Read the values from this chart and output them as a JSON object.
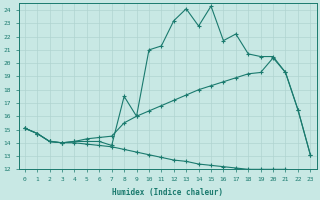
{
  "xlabel": "Humidex (Indice chaleur)",
  "xlim": [
    -0.5,
    23.5
  ],
  "ylim": [
    12,
    24.5
  ],
  "yticks": [
    12,
    13,
    14,
    15,
    16,
    17,
    18,
    19,
    20,
    21,
    22,
    23,
    24
  ],
  "xticks": [
    0,
    1,
    2,
    3,
    4,
    5,
    6,
    7,
    8,
    9,
    10,
    11,
    12,
    13,
    14,
    15,
    16,
    17,
    18,
    19,
    20,
    21,
    22,
    23
  ],
  "bg_color": "#c8e8e4",
  "line_color": "#1a7a6e",
  "grid_color": "#b0d4d0",
  "line1_x": [
    0,
    1,
    2,
    3,
    4,
    5,
    6,
    7,
    8,
    9,
    10,
    11,
    12,
    13,
    14,
    15,
    16,
    17,
    18,
    19,
    20,
    21,
    22,
    23
  ],
  "line1_y": [
    15.1,
    14.7,
    14.1,
    14.0,
    14.1,
    14.1,
    14.1,
    13.8,
    17.5,
    16.0,
    21.0,
    21.3,
    23.2,
    24.1,
    22.8,
    24.3,
    21.7,
    22.2,
    20.7,
    20.5,
    20.5,
    19.3,
    16.5,
    13.1
  ],
  "line2_x": [
    0,
    1,
    2,
    3,
    4,
    5,
    6,
    7,
    8,
    9,
    10,
    11,
    12,
    13,
    14,
    15,
    16,
    17,
    18,
    19,
    20,
    21,
    22,
    23
  ],
  "line2_y": [
    15.1,
    14.7,
    14.1,
    14.0,
    14.1,
    14.3,
    14.4,
    14.5,
    15.5,
    16.0,
    16.4,
    16.8,
    17.2,
    17.6,
    18.0,
    18.3,
    18.6,
    18.9,
    19.2,
    19.3,
    20.4,
    19.3,
    16.5,
    13.1
  ],
  "line3_x": [
    0,
    1,
    2,
    3,
    4,
    5,
    6,
    7,
    8,
    9,
    10,
    11,
    12,
    13,
    14,
    15,
    16,
    17,
    18,
    19,
    20,
    21,
    22,
    23
  ],
  "line3_y": [
    15.1,
    14.7,
    14.1,
    14.0,
    14.0,
    13.9,
    13.8,
    13.7,
    13.5,
    13.3,
    13.1,
    12.9,
    12.7,
    12.6,
    12.4,
    12.3,
    12.2,
    12.1,
    12.0,
    12.0,
    12.0,
    12.0,
    11.9,
    11.8
  ]
}
